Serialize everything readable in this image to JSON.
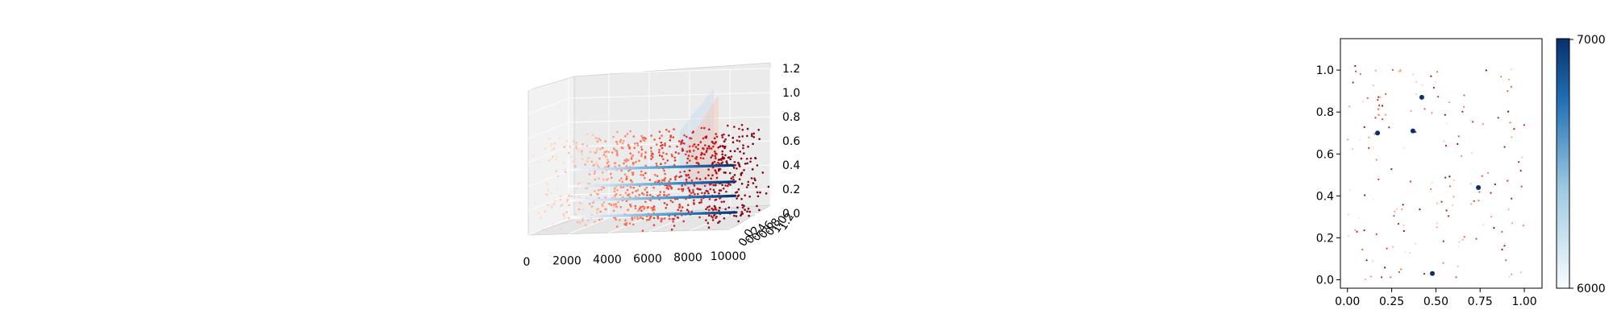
{
  "chart_data": [
    {
      "type": "scatter",
      "projection": "3d",
      "title": "",
      "x_ticks": [
        "0",
        "2000",
        "4000",
        "6000",
        "8000",
        "10000"
      ],
      "y_ticks": [
        "0.0",
        "0.2",
        "0.4",
        "0.6",
        "0.8",
        "1.0",
        "1.2"
      ],
      "z_ticks": [
        "0.0",
        "0.2",
        "0.4",
        "0.6",
        "0.8",
        "1.0",
        "1.2"
      ],
      "xlim": [
        0,
        10000
      ],
      "ylim": [
        0,
        1.2
      ],
      "zlim": [
        0,
        1.2
      ],
      "scatter_colormap": "Reds",
      "line_colormap": "Blues",
      "line_series_z": [
        0.52,
        0.38,
        0.26,
        0.12
      ],
      "grid": true
    },
    {
      "type": "scatter",
      "title": "",
      "x_ticks": [
        "0.00",
        "0.25",
        "0.50",
        "0.75",
        "1.00"
      ],
      "y_ticks": [
        "0.0",
        "0.2",
        "0.4",
        "0.6",
        "0.8",
        "1.0"
      ],
      "xlim": [
        -0.04,
        1.1
      ],
      "ylim": [
        -0.04,
        1.15
      ],
      "colormap": "Reds",
      "highlight_points": [
        {
          "x": 0.42,
          "y": 0.87
        },
        {
          "x": 0.17,
          "y": 0.7
        },
        {
          "x": 0.37,
          "y": 0.71
        },
        {
          "x": 0.74,
          "y": 0.44
        },
        {
          "x": 0.48,
          "y": 0.03
        }
      ],
      "colorbar": {
        "min_label": "6000",
        "max_label": "7000",
        "colors": [
          "#f7fbff",
          "#08306b"
        ]
      },
      "grid": false
    }
  ]
}
